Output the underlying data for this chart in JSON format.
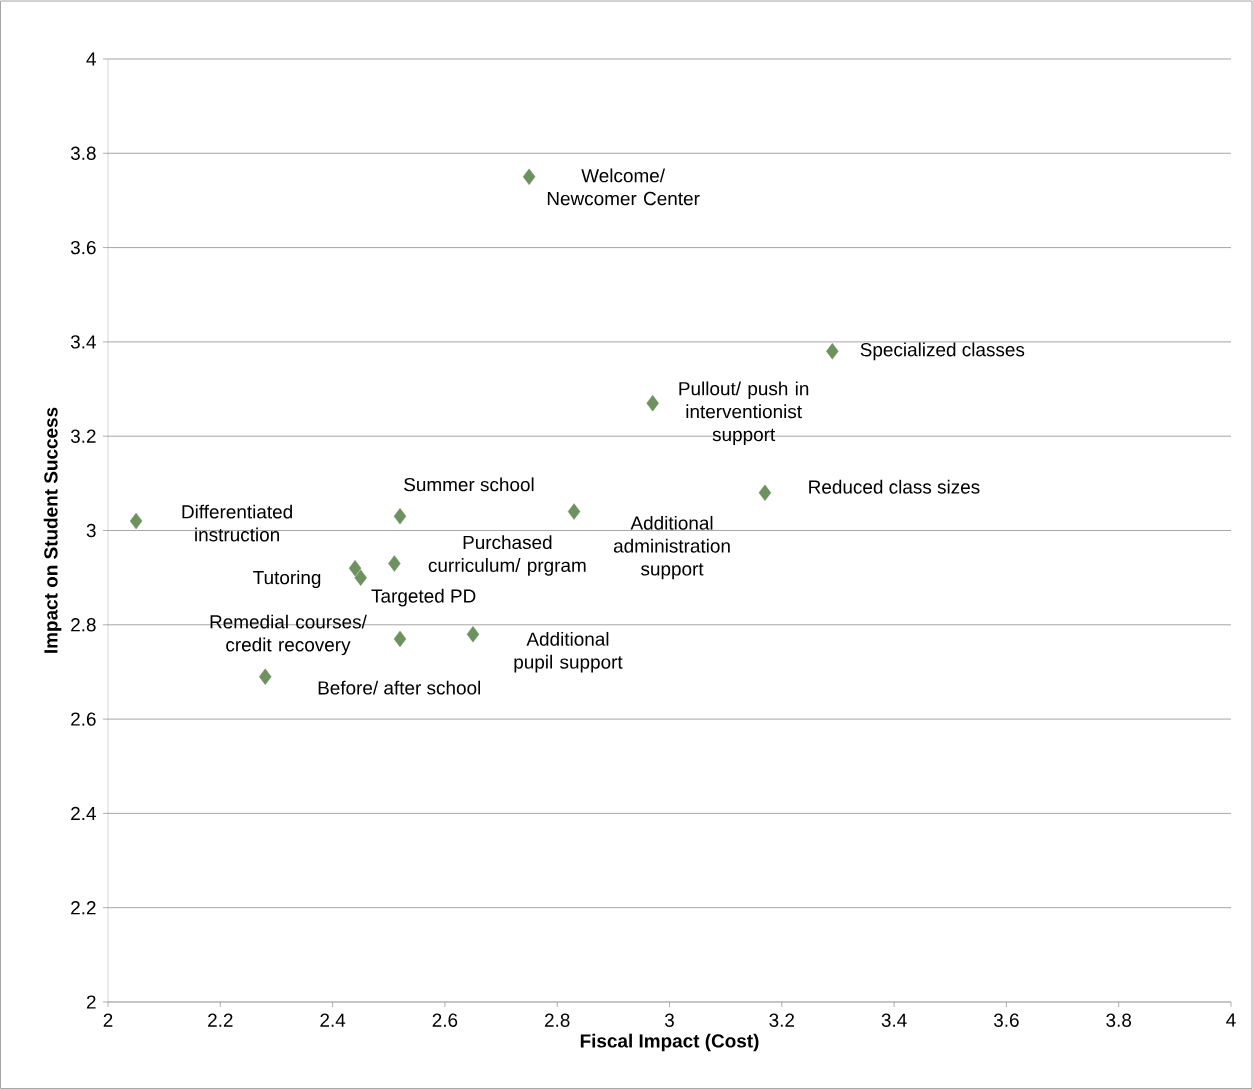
{
  "chart_data": {
    "type": "scatter",
    "xlabel": "Fiscal Impact (Cost)",
    "ylabel": "Impact on Student Success",
    "x": [
      2.75,
      3.29,
      2.97,
      3.17,
      2.83,
      2.52,
      2.05,
      2.51,
      2.44,
      2.45,
      2.52,
      2.65,
      2.28
    ],
    "values": [
      3.75,
      3.38,
      3.27,
      3.08,
      3.04,
      3.03,
      3.02,
      2.93,
      2.92,
      2.9,
      2.77,
      2.78,
      2.69
    ],
    "color": "#6e9160",
    "marker": "diamond",
    "grid": "y",
    "xlim": [
      2,
      4
    ],
    "xticks": [
      2,
      2.2,
      2.4,
      2.6,
      2.8,
      3,
      3.2,
      3.4,
      3.6,
      3.8,
      4
    ],
    "ylim": [
      2,
      4
    ],
    "yticks": [
      2,
      2.2,
      2.4,
      2.6,
      2.8,
      3,
      3.2,
      3.4,
      3.6,
      3.8,
      4
    ],
    "annotations": [
      {
        "text": "Welcome/ Newcomer Center",
        "x": 2.75,
        "y": 3.75
      },
      {
        "text": "Specialized classes",
        "x": 3.29,
        "y": 3.38
      },
      {
        "text": "Pullout/ push in interventionist support",
        "x": 2.97,
        "y": 3.27
      },
      {
        "text": "Reduced class sizes",
        "x": 3.17,
        "y": 3.08
      },
      {
        "text": "Additional administration support",
        "x": 2.83,
        "y": 3.04
      },
      {
        "text": "Summer school",
        "x": 2.52,
        "y": 3.03
      },
      {
        "text": "Differentiated instruction",
        "x": 2.05,
        "y": 3.02
      },
      {
        "text": "Purchased curriculum/ prgram",
        "x": 2.51,
        "y": 2.93
      },
      {
        "text": "Tutoring",
        "x": 2.44,
        "y": 2.92
      },
      {
        "text": "Targeted PD",
        "x": 2.45,
        "y": 2.9
      },
      {
        "text": "Remedial courses/ credit recovery",
        "x": 2.52,
        "y": 2.77
      },
      {
        "text": "Additional pupil support",
        "x": 2.65,
        "y": 2.78
      },
      {
        "text": "Before/ after school",
        "x": 2.28,
        "y": 2.69
      }
    ]
  }
}
